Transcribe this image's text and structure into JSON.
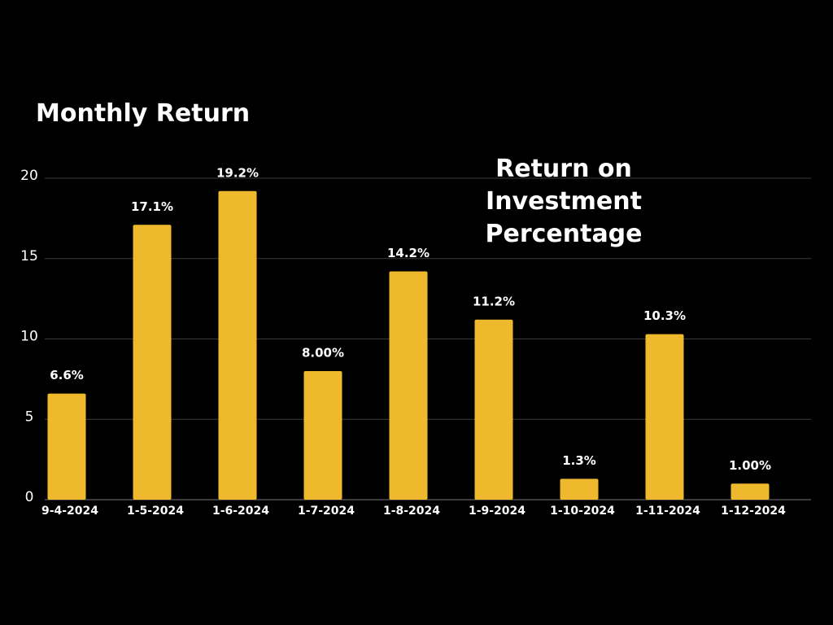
{
  "chart_data": {
    "type": "bar",
    "title": "Monthly Return",
    "subtitle": "Return on Investment Percentage",
    "categories": [
      "9-4-2024",
      "1-5-2024",
      "1-6-2024",
      "1-7-2024",
      "1-8-2024",
      "1-9-2024",
      "1-10-2024",
      "1-11-2024",
      "1-12-2024"
    ],
    "values": [
      6.6,
      17.1,
      19.2,
      8,
      14.2,
      11.2,
      1.3,
      10.3,
      1
    ],
    "value_labels": [
      "6.6%",
      "17.1%",
      "19.2%",
      "8.00%",
      "14.2%",
      "11.2%",
      "1.3%",
      "10.3%",
      "1.00%"
    ],
    "color": "#efb92e",
    "ylim": [
      0,
      20
    ],
    "yticks": [
      0,
      5,
      10,
      15,
      20
    ],
    "grid": true
  }
}
